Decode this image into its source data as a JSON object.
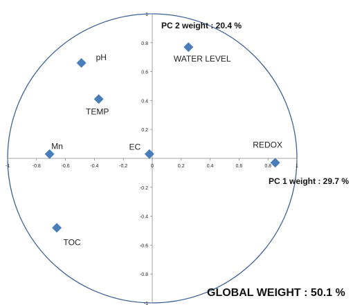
{
  "chart_data": {
    "type": "scatter",
    "xlim": [
      -1,
      1
    ],
    "ylim": [
      -1,
      1
    ],
    "x_ticks": [
      "-1",
      "-0.8",
      "-0.6",
      "-0.4",
      "-0.2",
      "0",
      "0.2",
      "0.4",
      "0.6",
      "0.8",
      "1"
    ],
    "y_ticks": [
      "1",
      "0.8",
      "0.6",
      "0.4",
      "0.2",
      "0",
      "-0.2",
      "-0.4",
      "-0.6",
      "-0.8",
      "-1"
    ],
    "grid": false,
    "unit_circle": true,
    "marker_color": "#4a7ebb",
    "circle_color": "#3b5f96",
    "points": [
      {
        "label": "pH",
        "x": -0.49,
        "y": 0.66
      },
      {
        "label": "TEMP",
        "x": -0.37,
        "y": 0.41
      },
      {
        "label": "WATER LEVEL",
        "x": 0.25,
        "y": 0.77
      },
      {
        "label": "Mn",
        "x": -0.71,
        "y": 0.03
      },
      {
        "label": "EC",
        "x": -0.02,
        "y": 0.03
      },
      {
        "label": "REDOX",
        "x": 0.85,
        "y": -0.03
      },
      {
        "label": "TOC",
        "x": -0.66,
        "y": -0.48
      }
    ],
    "annotations": {
      "pc2": "PC 2 weight : 20.4 %",
      "pc1": "PC 1 weight : 29.7 %",
      "global": "GLOBAL WEIGHT : 50.1 %"
    }
  }
}
